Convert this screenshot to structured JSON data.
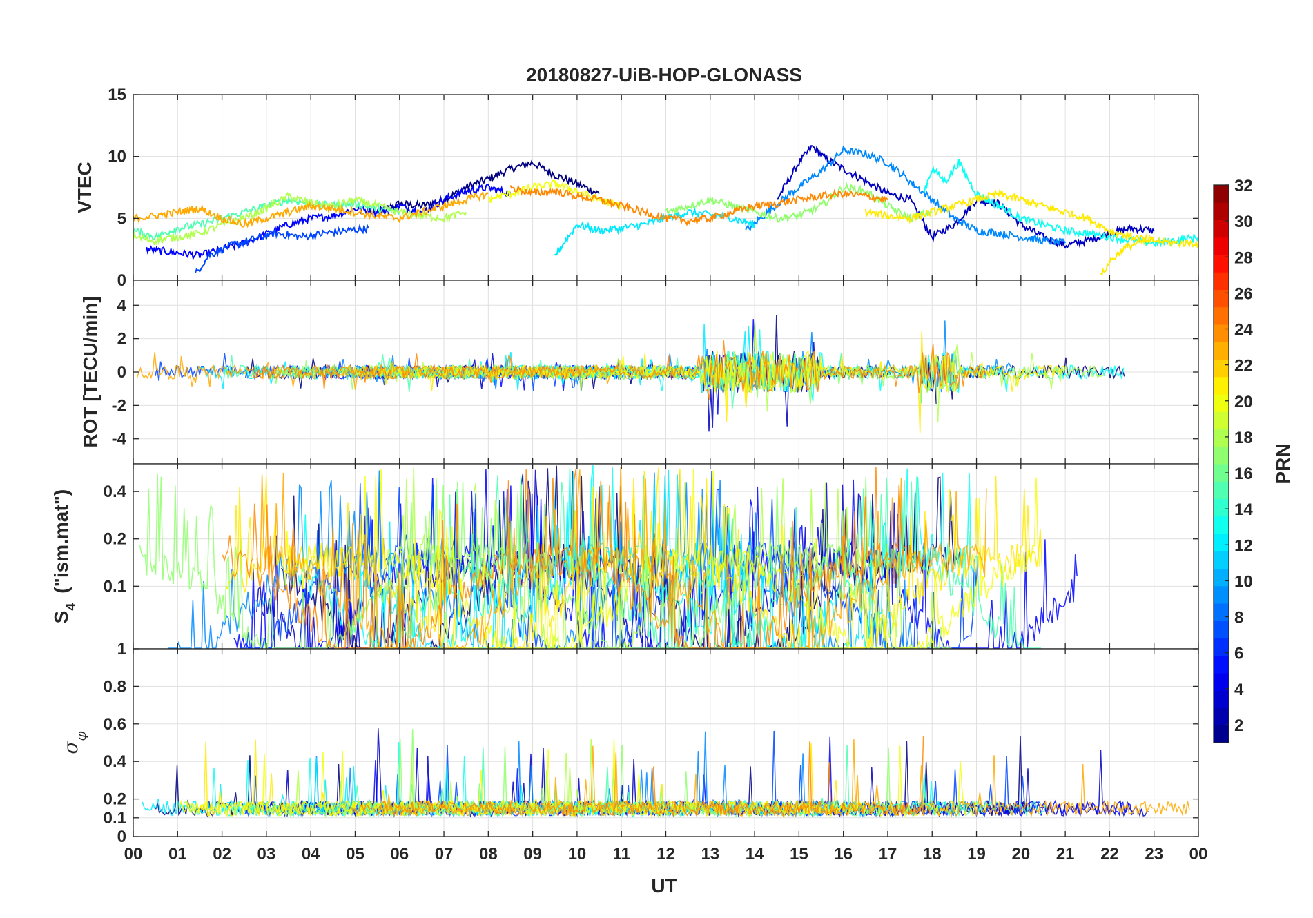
{
  "chart_data": {
    "type": "line",
    "title": "20180827-UiB-HOP-GLONASS",
    "xlabel": "UT",
    "x_tick_labels": [
      "00",
      "01",
      "02",
      "03",
      "04",
      "05",
      "06",
      "07",
      "08",
      "09",
      "10",
      "11",
      "12",
      "13",
      "14",
      "15",
      "16",
      "17",
      "18",
      "19",
      "20",
      "21",
      "22",
      "23",
      "00"
    ],
    "xlim": [
      0,
      24
    ],
    "grid": true,
    "panels": [
      {
        "ylabel": "VTEC",
        "ylim": [
          0,
          15
        ],
        "yticks": [
          0,
          5,
          10,
          15
        ],
        "series": [
          {
            "prn": 1,
            "x": [
              5.5,
              6,
              6.5,
              7,
              7.5,
              8,
              8.5,
              9,
              9.5,
              10,
              10.5
            ],
            "y": [
              5.5,
              6.2,
              6,
              6.5,
              7.5,
              8.2,
              9,
              9.5,
              8.5,
              7.8,
              7
            ]
          },
          {
            "prn": 3,
            "x": [
              14.5,
              15,
              15.3,
              15.6,
              16,
              16.5,
              17,
              17.5,
              18,
              18.5,
              19,
              19.5,
              20,
              20.5,
              21,
              21.5,
              22,
              22.5,
              23
            ],
            "y": [
              6.5,
              9.5,
              10.8,
              9.8,
              9,
              8,
              7,
              6.5,
              3.5,
              4.5,
              6.5,
              6.2,
              4.5,
              3.5,
              2.8,
              3.2,
              3.8,
              4.2,
              4
            ]
          },
          {
            "prn": 5,
            "x": [
              0.3,
              1.5,
              2.5,
              3.5,
              4,
              4.5,
              5,
              5.5,
              6,
              6.5,
              7,
              7.5,
              8,
              8.5
            ],
            "y": [
              2.5,
              2,
              3,
              4.5,
              5,
              5.2,
              5.8,
              5.5,
              6,
              5.5,
              6.5,
              7.2,
              7.5,
              7
            ]
          },
          {
            "prn": 7,
            "x": [
              1.4,
              1.7,
              2.2,
              2.6,
              3.2,
              3.8,
              4.3,
              4.8,
              5.3
            ],
            "y": [
              0.5,
              2,
              2.8,
              3.2,
              3.8,
              3.5,
              3.8,
              4,
              4.2
            ]
          },
          {
            "prn": 9,
            "x": [
              13.8,
              14.3,
              14.8,
              15.5,
              16,
              16.5,
              17,
              17.5,
              18,
              18.5,
              19,
              19.5,
              20,
              20.5,
              21
            ],
            "y": [
              4,
              5.5,
              7,
              8.8,
              10.5,
              10.2,
              9.5,
              8,
              6.5,
              5,
              4,
              3.8,
              3.5,
              3.2,
              3
            ]
          },
          {
            "prn": 12,
            "x": [
              9.5,
              10,
              10.5,
              11,
              11.5,
              12,
              12.5,
              13,
              13.5,
              14
            ],
            "y": [
              2,
              4.5,
              4,
              4.2,
              4.5,
              5,
              5.5,
              5.3,
              5,
              4.5
            ]
          },
          {
            "prn": 13,
            "x": [
              17.8,
              18,
              18.3,
              18.6,
              19,
              19.5,
              20,
              20.5,
              21,
              21.5,
              22,
              22.5,
              23,
              23.5,
              24
            ],
            "y": [
              7,
              9,
              8,
              9.5,
              7,
              6,
              5,
              4.5,
              4,
              3.8,
              3.5,
              3.2,
              3,
              3.2,
              3.5
            ]
          },
          {
            "prn": 15,
            "x": [
              0,
              0.5,
              1,
              1.5,
              2,
              2.5,
              3,
              3.5,
              4,
              4.5,
              5,
              5.5,
              6
            ],
            "y": [
              4,
              3.5,
              4.2,
              4.5,
              5,
              5.5,
              6,
              6.5,
              6.2,
              6,
              6.2,
              5.8,
              5.5
            ]
          },
          {
            "prn": 17,
            "x": [
              12,
              12.5,
              13,
              13.5,
              14,
              14.5,
              15,
              15.5,
              16,
              16.5,
              17,
              17.5,
              18
            ],
            "y": [
              5.5,
              6,
              6.5,
              6,
              5.5,
              5,
              5.2,
              6,
              7.5,
              7.2,
              6,
              5,
              5.5
            ]
          },
          {
            "prn": 18,
            "x": [
              0,
              0.5,
              1,
              1.5,
              2,
              2.5,
              3,
              3.5,
              4,
              4.5,
              5,
              5.5,
              6,
              6.5,
              7,
              7.5
            ],
            "y": [
              3.5,
              3.2,
              3.5,
              3.8,
              4.5,
              5,
              5.8,
              6.8,
              6.2,
              6,
              6.5,
              6,
              5.5,
              5.2,
              5,
              5.5
            ]
          },
          {
            "prn": 20,
            "x": [
              8,
              8.5,
              9,
              9.5,
              10,
              10.5,
              11
            ],
            "y": [
              6.5,
              7,
              7.5,
              7.8,
              7.2,
              6.5,
              6
            ]
          },
          {
            "prn": 21,
            "x": [
              16.5,
              17,
              17.5,
              18,
              18.5,
              19,
              19.5,
              20,
              20.5,
              21,
              21.5,
              22,
              22.5,
              23,
              23.5,
              24
            ],
            "y": [
              5.5,
              5.2,
              5,
              5.5,
              6,
              6.5,
              7,
              6.5,
              6,
              5.5,
              5,
              4,
              3.5,
              3.2,
              3,
              3
            ]
          },
          {
            "prn": 21,
            "x": [
              21.8,
              22,
              22.3,
              22.6,
              23
            ],
            "y": [
              0.3,
              1.5,
              2.5,
              3,
              3.2
            ]
          },
          {
            "prn": 23,
            "x": [
              0,
              0.5,
              1,
              1.5,
              2,
              2.5,
              3,
              3.5,
              4,
              4.5,
              5,
              5.5,
              6,
              6.5,
              7,
              7.5,
              8
            ],
            "y": [
              5,
              5.2,
              5.5,
              5.8,
              5,
              4.5,
              5,
              5.5,
              6,
              5.8,
              5.5,
              5.2,
              5,
              5.5,
              6,
              6.5,
              7
            ]
          },
          {
            "prn": 24,
            "x": [
              8.5,
              9,
              9.5,
              10,
              10.5,
              11,
              11.5,
              12,
              12.5,
              13,
              13.5,
              14,
              14.5,
              15,
              15.5,
              16,
              16.5,
              17
            ],
            "y": [
              7.5,
              7,
              7.2,
              6.8,
              6.5,
              6,
              5.5,
              5,
              4.8,
              5,
              5.5,
              6,
              6.2,
              6.5,
              6.8,
              7,
              6.8,
              6.5
            ]
          }
        ]
      },
      {
        "ylabel": "ROT [TECU/min]",
        "ylim": [
          -5.5,
          5.5
        ],
        "yticks": [
          -4,
          -2,
          0,
          2,
          4
        ]
      },
      {
        "ylabel": "S4 (\"ism.mat\")",
        "ylim": [
          0.04,
          0.6
        ],
        "yscale": "log",
        "yticks": [
          0.1,
          0.2,
          0.4
        ]
      },
      {
        "ylabel": "σφ",
        "ylim": [
          0,
          1
        ],
        "yticks": [
          0,
          0.1,
          0.2,
          0.4,
          0.6,
          0.8,
          1
        ],
        "ytick_labels": [
          "0",
          "0.1",
          "0.2",
          "0.4",
          "0.6",
          "0.8",
          "1"
        ]
      }
    ],
    "colorbar": {
      "label": "PRN",
      "colormap": "jet",
      "range": [
        1,
        32
      ],
      "levels": 32,
      "tick_values": [
        2,
        4,
        6,
        8,
        10,
        12,
        14,
        16,
        18,
        20,
        22,
        24,
        26,
        28,
        30,
        32
      ]
    }
  }
}
